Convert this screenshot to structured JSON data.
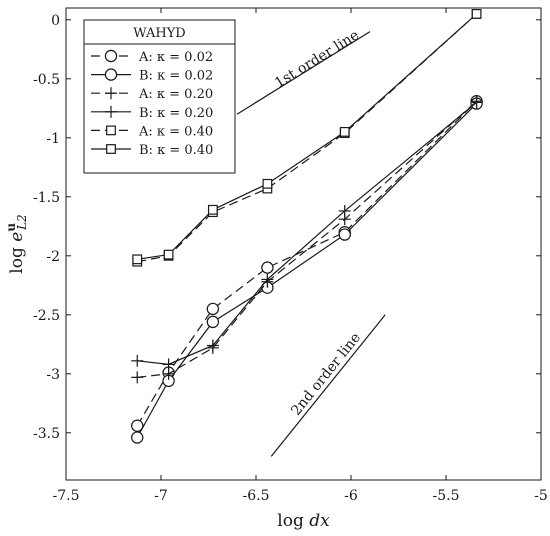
{
  "chart_data": {
    "type": "line",
    "title": "",
    "xlabel": "log dx",
    "ylabel": "log e^u_L2",
    "xlim": [
      -7.5,
      -5
    ],
    "ylim": [
      -3.9,
      0.1
    ],
    "x_ticks": [
      "-7.5",
      "-7",
      "-6.5",
      "-6",
      "-5.5",
      "-5"
    ],
    "y_ticks": [
      "0",
      "-0.5",
      "-1",
      "-1.5",
      "-2",
      "-2.5",
      "-3",
      "-3.5"
    ],
    "grid": false,
    "legend": {
      "title": "WAHYD",
      "placement": "top-left",
      "entries": [
        "A: κ = 0.02",
        "B: κ = 0.02",
        "A: κ = 0.20",
        "B: κ = 0.20",
        "A: κ = 0.40",
        "B: κ = 0.40"
      ]
    },
    "series": [
      {
        "name": "A: κ = 0.02",
        "marker": "circle",
        "dash": "dashed",
        "x": [
          -7.125,
          -6.96,
          -6.727,
          -6.44,
          -6.033,
          -5.339
        ],
        "y": [
          -3.44,
          -2.99,
          -2.45,
          -2.1,
          -1.8,
          -0.69
        ]
      },
      {
        "name": "B: κ = 0.02",
        "marker": "circle",
        "dash": "solid",
        "x": [
          -7.125,
          -6.96,
          -6.727,
          -6.44,
          -6.033,
          -5.339
        ],
        "y": [
          -3.54,
          -3.06,
          -2.56,
          -2.27,
          -1.82,
          -0.71
        ]
      },
      {
        "name": "A: κ = 0.20",
        "marker": "plus",
        "dash": "dashed",
        "x": [
          -7.125,
          -6.96,
          -6.727,
          -6.44,
          -6.033,
          -5.339
        ],
        "y": [
          -3.03,
          -3.0,
          -2.78,
          -2.22,
          -1.69,
          -0.69
        ]
      },
      {
        "name": "B: κ = 0.20",
        "marker": "plus",
        "dash": "solid",
        "x": [
          -7.125,
          -6.96,
          -6.727,
          -6.44,
          -6.033,
          -5.339
        ],
        "y": [
          -2.89,
          -2.92,
          -2.76,
          -2.2,
          -1.62,
          -0.7
        ]
      },
      {
        "name": "A: κ = 0.40",
        "marker": "square",
        "dash": "dashed",
        "x": [
          -7.125,
          -6.96,
          -6.727,
          -6.44,
          -6.033,
          -5.339
        ],
        "y": [
          -2.05,
          -2.0,
          -1.63,
          -1.43,
          -0.96,
          0.05
        ]
      },
      {
        "name": "B: κ = 0.40",
        "marker": "square",
        "dash": "solid",
        "x": [
          -7.125,
          -6.96,
          -6.727,
          -6.44,
          -6.033,
          -5.339
        ],
        "y": [
          -2.03,
          -1.99,
          -1.61,
          -1.39,
          -0.95,
          0.05
        ]
      }
    ],
    "reference_lines": [
      {
        "label": "1st order line",
        "x": [
          -6.6,
          -5.9
        ],
        "y": [
          -0.8,
          -0.1
        ]
      },
      {
        "label": "2nd order line",
        "x": [
          -6.42,
          -5.82
        ],
        "y": [
          -3.7,
          -2.5
        ]
      }
    ],
    "colors": {
      "line": "#1a1a1a",
      "background": "#ffffff"
    }
  }
}
